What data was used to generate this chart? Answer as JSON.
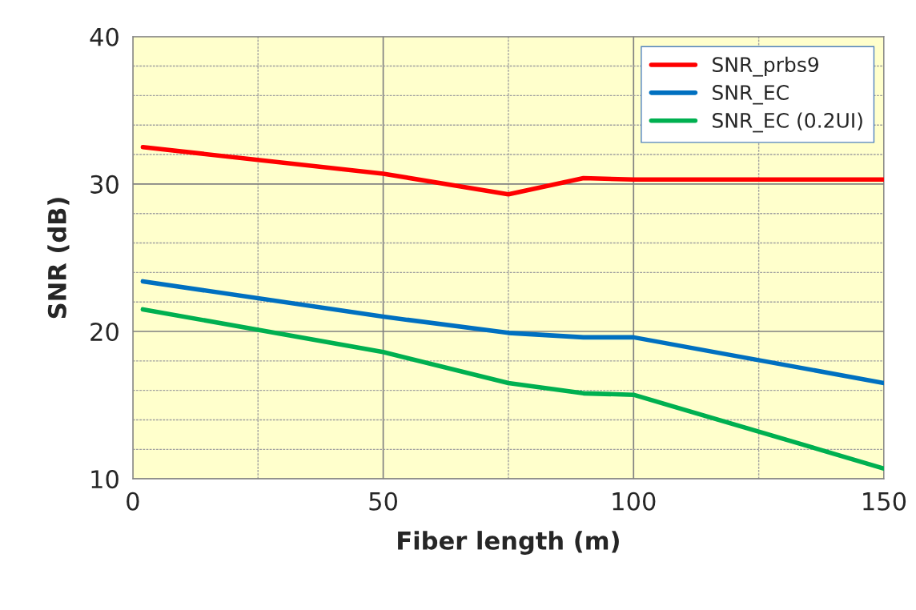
{
  "chart_data": {
    "type": "line",
    "xlabel": "Fiber length (m)",
    "ylabel": "SNR (dB)",
    "x": [
      2,
      50,
      75,
      90,
      100,
      150
    ],
    "series": [
      {
        "name": "SNR_prbs9",
        "color": "#ff0000",
        "values": [
          32.5,
          30.7,
          29.3,
          30.4,
          30.3,
          30.3
        ]
      },
      {
        "name": "SNR_EC",
        "color": "#0070c0",
        "values": [
          23.4,
          21.0,
          19.9,
          19.6,
          19.6,
          16.5
        ]
      },
      {
        "name": "SNR_EC (0.2UI)",
        "color": "#00b050",
        "values": [
          21.5,
          18.6,
          16.5,
          15.8,
          15.7,
          10.7
        ]
      }
    ],
    "xlim": [
      0,
      150
    ],
    "xticks": [
      0,
      50,
      100,
      150
    ],
    "ylim": [
      10,
      40
    ],
    "yticks": [
      10,
      20,
      30,
      40
    ],
    "grid": true,
    "legend": "top right",
    "marker": "none",
    "line_style": "solid"
  }
}
